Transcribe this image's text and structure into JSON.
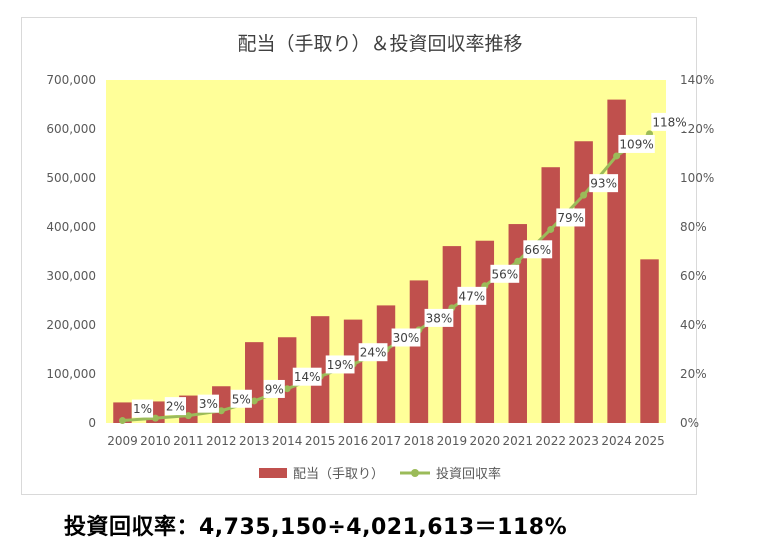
{
  "chart_data": {
    "type": "bar",
    "title": "配当（手取り）＆投資回収率推移",
    "categories": [
      "2009",
      "2010",
      "2011",
      "2012",
      "2013",
      "2014",
      "2015",
      "2016",
      "2017",
      "2018",
      "2019",
      "2020",
      "2021",
      "2022",
      "2023",
      "2024",
      "2025"
    ],
    "series": [
      {
        "name": "配当（手取り）",
        "type": "bar",
        "axis": "left",
        "color": "#c0504d",
        "values": [
          42000,
          44000,
          56000,
          75000,
          165000,
          175000,
          218000,
          211000,
          240000,
          291000,
          361000,
          372000,
          406000,
          522000,
          575000,
          660000,
          334000
        ]
      },
      {
        "name": "投資回収率",
        "type": "line",
        "axis": "right",
        "color": "#9bbb59",
        "values": [
          1,
          2,
          3,
          5,
          9,
          14,
          19,
          24,
          30,
          38,
          47,
          56,
          66,
          79,
          93,
          109,
          118
        ],
        "labels": [
          "1%",
          "2%",
          "3%",
          "5%",
          "9%",
          "14%",
          "19%",
          "24%",
          "30%",
          "38%",
          "47%",
          "56%",
          "66%",
          "79%",
          "93%",
          "109%",
          "118%"
        ]
      }
    ],
    "y_left": {
      "min": 0,
      "max": 700000,
      "ticks": [
        "0",
        "100,000",
        "200,000",
        "300,000",
        "400,000",
        "500,000",
        "600,000",
        "700,000"
      ]
    },
    "y_right": {
      "min": 0,
      "max": 140,
      "ticks": [
        "0%",
        "20%",
        "40%",
        "60%",
        "80%",
        "100%",
        "120%",
        "140%"
      ]
    },
    "plot_background": "#ffff99",
    "legend_position": "bottom",
    "grid": false
  },
  "footer": {
    "formula": "投資回収率：4,735,150÷4,021,613＝118%"
  }
}
